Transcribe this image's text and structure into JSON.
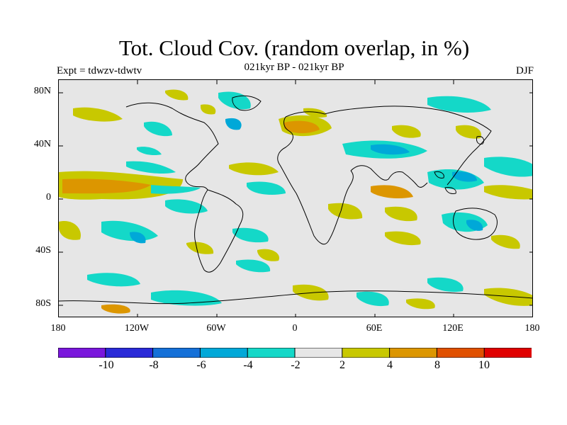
{
  "title": "Tot. Cloud Cov. (random overlap, in %)",
  "subtitle": "021kyr BP - 021kyr BP",
  "experiment": "Expt = tdwzv-tdwtv",
  "season": "DJF",
  "lat_labels": [
    "80N",
    "40N",
    "0",
    "40S",
    "80S"
  ],
  "lon_labels": [
    "180",
    "120W",
    "60W",
    "0",
    "60E",
    "120E",
    "180"
  ],
  "background_color": "#e6e6e6",
  "colorbar": {
    "colors": [
      "#7a16dc",
      "#2a2ad8",
      "#1470d8",
      "#00a8d8",
      "#14d8c8",
      "#e6e6e6",
      "#c8c800",
      "#dc9600",
      "#e05000",
      "#e00000"
    ],
    "labels": [
      "-10",
      "-8",
      "-6",
      "-4",
      "-2",
      "2",
      "4",
      "8",
      "10"
    ]
  }
}
